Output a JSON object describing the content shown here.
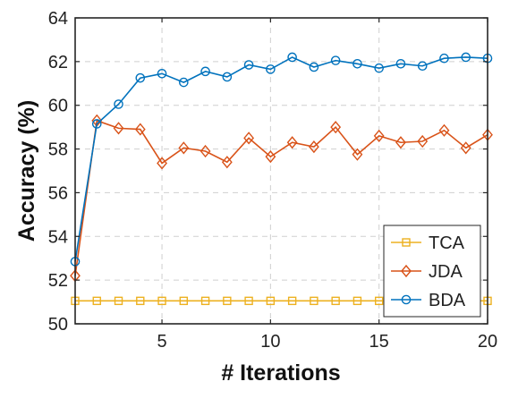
{
  "chart_data": {
    "type": "line",
    "title": "",
    "xlabel": "# Iterations",
    "ylabel": "Accuracy (%)",
    "xlim": [
      1,
      20
    ],
    "ylim": [
      50,
      64
    ],
    "xticks": [
      5,
      10,
      15,
      20
    ],
    "yticks": [
      50,
      52,
      54,
      56,
      58,
      60,
      62,
      64
    ],
    "grid": true,
    "legend_position": "bottom-right",
    "x": [
      1,
      2,
      3,
      4,
      5,
      6,
      7,
      8,
      9,
      10,
      11,
      12,
      13,
      14,
      15,
      16,
      17,
      18,
      19,
      20
    ],
    "series": [
      {
        "name": "TCA",
        "color": "#EDB120",
        "marker": "square",
        "values": [
          51.05,
          51.05,
          51.05,
          51.05,
          51.05,
          51.05,
          51.05,
          51.05,
          51.05,
          51.05,
          51.05,
          51.05,
          51.05,
          51.05,
          51.05,
          51.05,
          51.05,
          51.05,
          51.05,
          51.05
        ]
      },
      {
        "name": "JDA",
        "color": "#D95319",
        "marker": "diamond",
        "values": [
          52.2,
          59.3,
          58.95,
          58.9,
          57.35,
          58.05,
          57.9,
          57.4,
          58.5,
          57.65,
          58.3,
          58.1,
          59.0,
          57.75,
          58.6,
          58.3,
          58.35,
          58.85,
          58.05,
          58.65
        ]
      },
      {
        "name": "BDA",
        "color": "#0072BD",
        "marker": "circle",
        "values": [
          52.85,
          59.15,
          60.05,
          61.25,
          61.45,
          61.05,
          61.55,
          61.3,
          61.85,
          61.65,
          62.2,
          61.75,
          62.05,
          61.9,
          61.7,
          61.9,
          61.8,
          62.15,
          62.2,
          62.15
        ]
      }
    ]
  }
}
